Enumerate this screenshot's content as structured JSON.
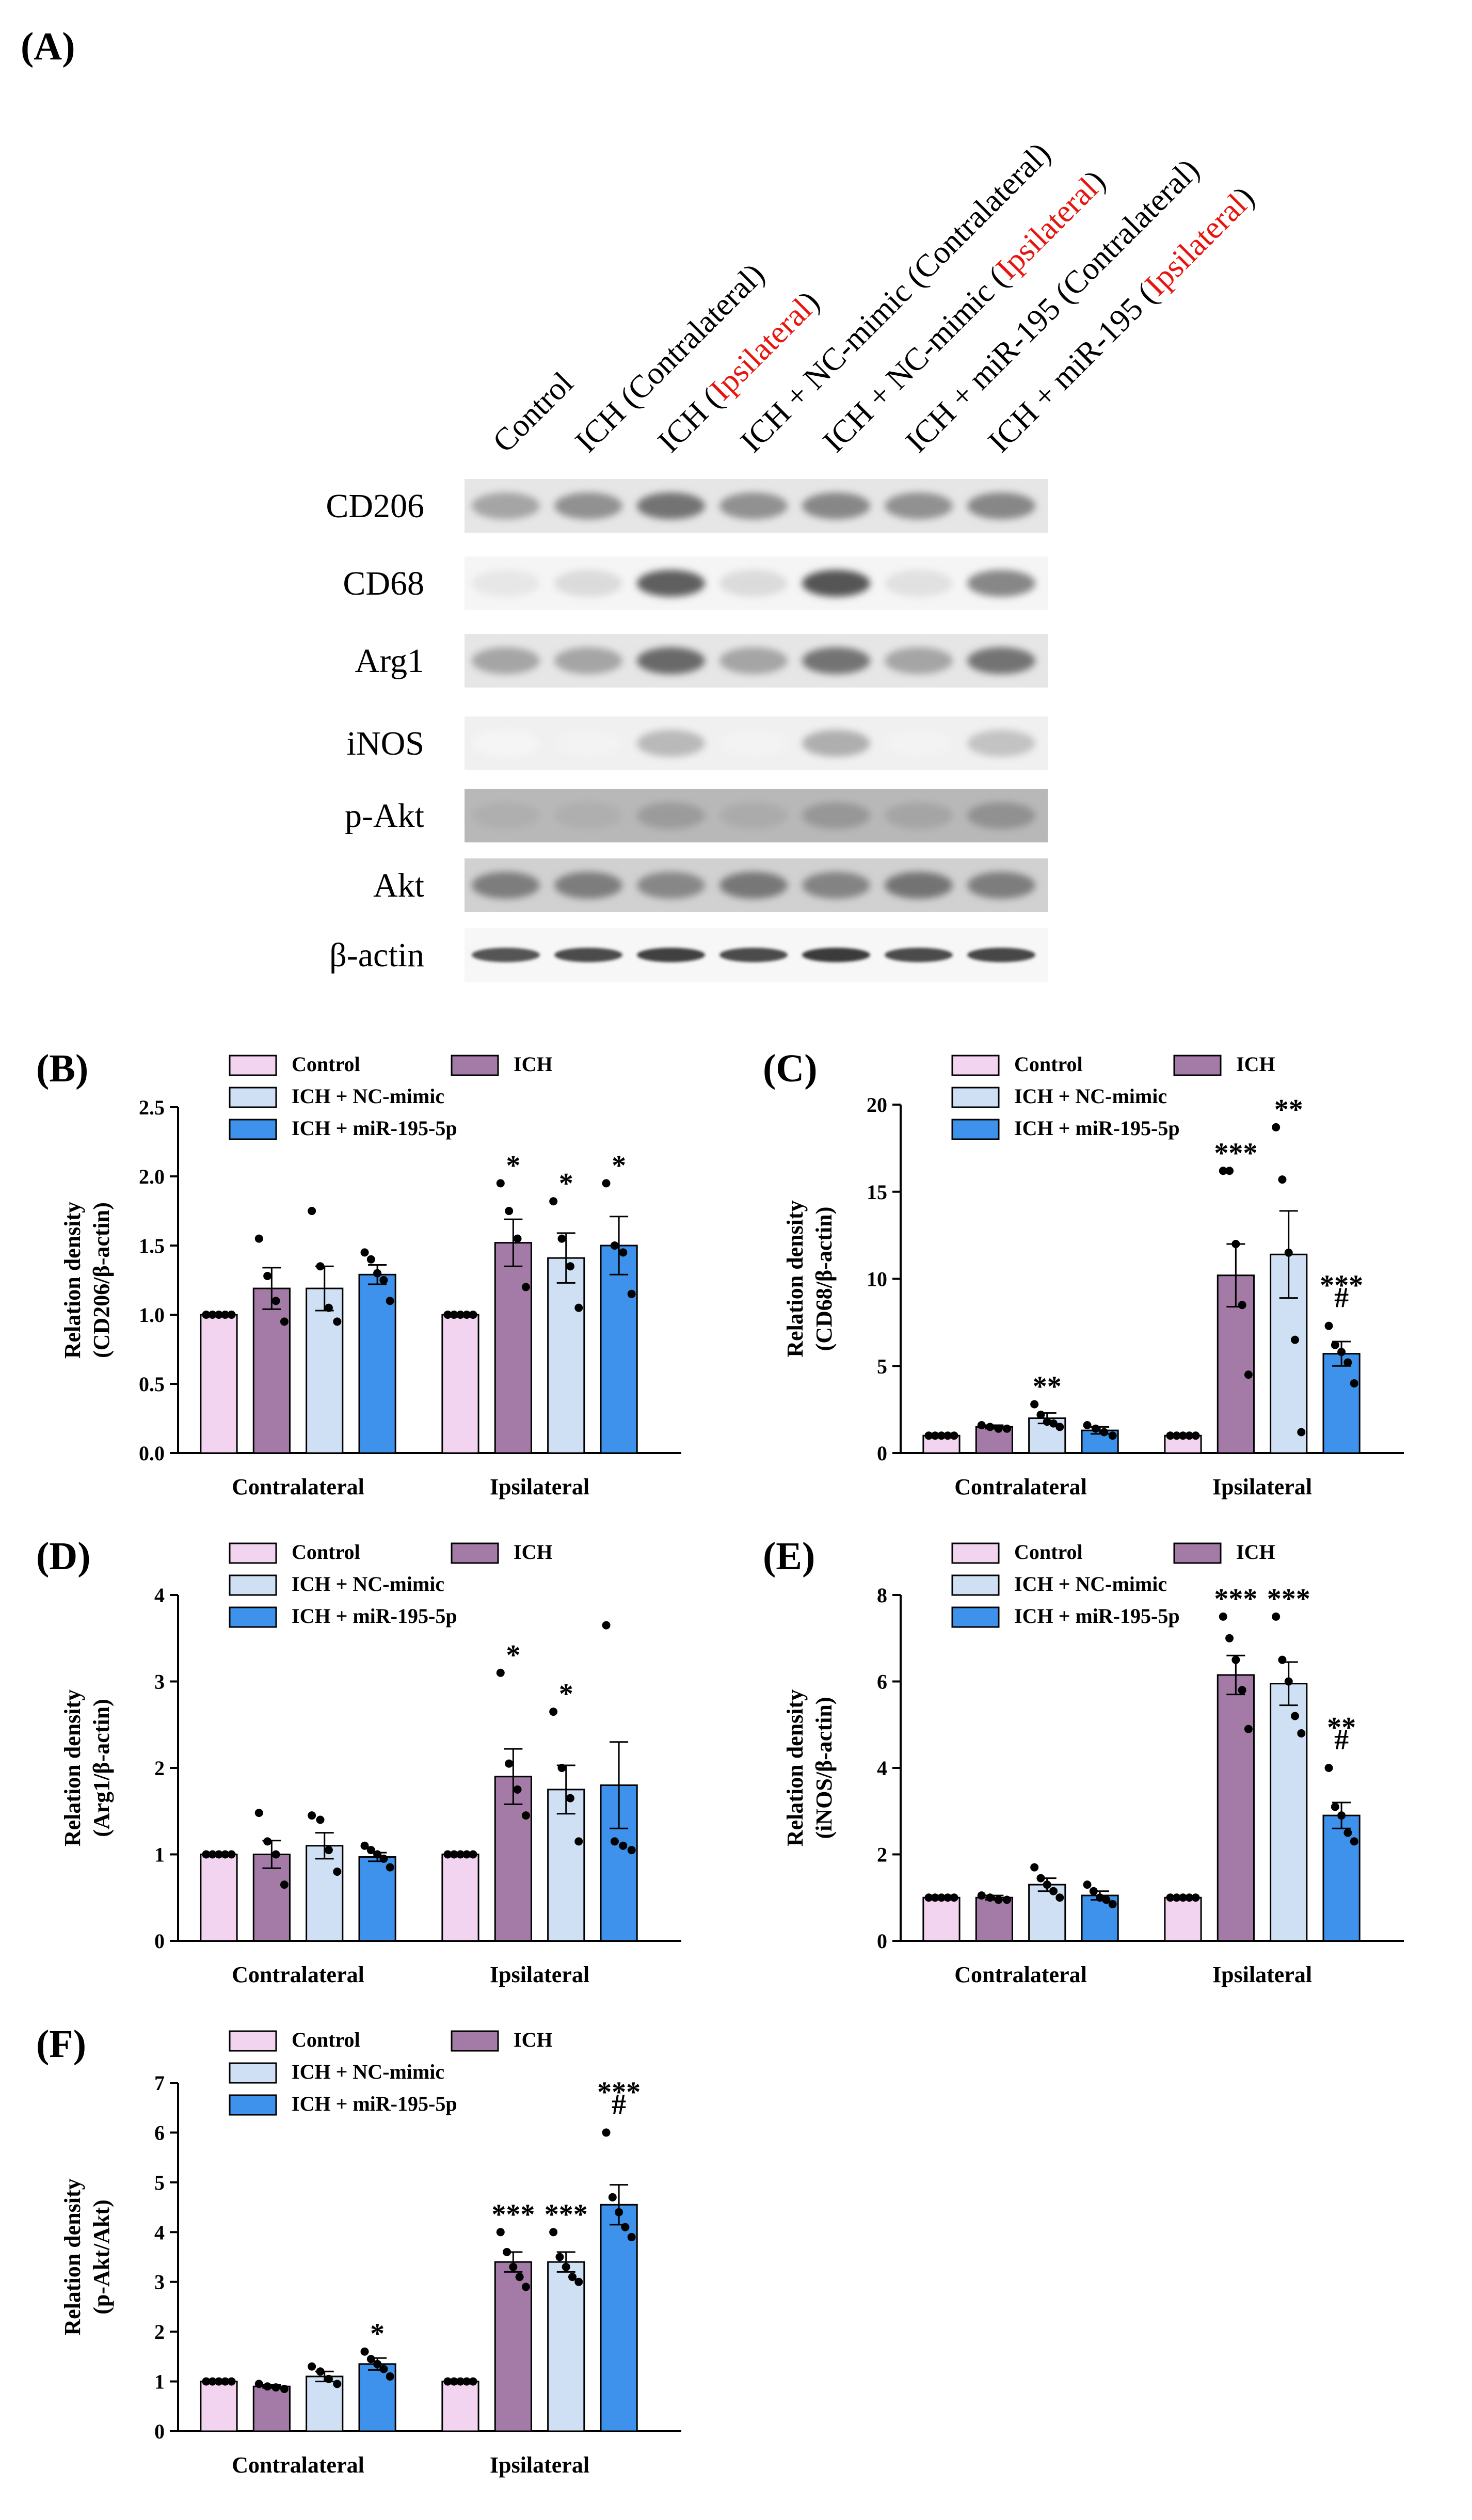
{
  "blot": {
    "panel_label": "(A)",
    "lanes": [
      {
        "prefix": "Control",
        "highlight": "",
        "suffix": ""
      },
      {
        "prefix": "ICH (Contralateral)",
        "highlight": "",
        "suffix": ""
      },
      {
        "prefix": "ICH (",
        "highlight": "Ipsilateral",
        "suffix": ")"
      },
      {
        "prefix": "ICH + NC-mimic (Contralateral)",
        "highlight": "",
        "suffix": ""
      },
      {
        "prefix": "ICH + NC-mimic (",
        "highlight": "Ipsilateral",
        "suffix": ")"
      },
      {
        "prefix": "ICH + miR-195 (Contralateral)",
        "highlight": "",
        "suffix": ""
      },
      {
        "prefix": "ICH + miR-195 (",
        "highlight": "Ipsilateral",
        "suffix": ")"
      }
    ],
    "bands": [
      {
        "label": "CD206",
        "intensity": [
          0.45,
          0.55,
          0.7,
          0.55,
          0.6,
          0.55,
          0.6
        ],
        "bg": 0.1
      },
      {
        "label": "CD68",
        "intensity": [
          0.12,
          0.18,
          0.8,
          0.18,
          0.85,
          0.15,
          0.6
        ],
        "bg": 0.04
      },
      {
        "label": "Arg1",
        "intensity": [
          0.45,
          0.45,
          0.75,
          0.45,
          0.7,
          0.45,
          0.7
        ],
        "bg": 0.1
      },
      {
        "label": "iNOS",
        "intensity": [
          0.05,
          0.06,
          0.35,
          0.06,
          0.4,
          0.06,
          0.3
        ],
        "bg": 0.06
      },
      {
        "label": "p-Akt",
        "intensity": [
          0.4,
          0.4,
          0.5,
          0.42,
          0.52,
          0.45,
          0.55
        ],
        "bg": 0.28
      },
      {
        "label": "Akt",
        "intensity": [
          0.65,
          0.65,
          0.6,
          0.68,
          0.62,
          0.7,
          0.65
        ],
        "bg": 0.18
      },
      {
        "label": "β-actin",
        "intensity": [
          0.85,
          0.9,
          0.95,
          0.9,
          0.98,
          0.9,
          0.92
        ],
        "bg": 0.03
      }
    ]
  },
  "colors": {
    "control": "#f2d4f1",
    "ich": "#a47aa7",
    "nc_mimic": "#cfe0f5",
    "mir195": "#3e92ec",
    "accent_red": "#e8140e"
  },
  "chart_data": [
    {
      "panel": "(B)",
      "type": "bar",
      "ylabel_line1": "Relation density",
      "ylabel_line2": "(CD206/β-actin)",
      "ylim": [
        0,
        2.5
      ],
      "yticks": [
        "0.0",
        "0.5",
        "1.0",
        "1.5",
        "2.0",
        "2.5"
      ],
      "ytick_values": [
        0,
        0.5,
        1.0,
        1.5,
        2.0,
        2.5
      ],
      "categories": [
        "Contralateral",
        "Ipsilateral"
      ],
      "legend": [
        "Control",
        "ICH",
        "ICH + NC-mimic",
        "ICH + miR-195-5p"
      ],
      "series": [
        {
          "name": "Control",
          "values": [
            1.0,
            1.0
          ],
          "sem": [
            0,
            0
          ],
          "points": [
            [
              1,
              1,
              1,
              1,
              1
            ],
            [
              1,
              1,
              1,
              1,
              1
            ]
          ],
          "sig": [
            "",
            ""
          ]
        },
        {
          "name": "ICH",
          "values": [
            1.19,
            1.52
          ],
          "sem": [
            0.15,
            0.17
          ],
          "points": [
            [
              1.55,
              1.28,
              1.1,
              0.95
            ],
            [
              1.95,
              1.75,
              1.55,
              1.2
            ]
          ],
          "sig": [
            "",
            "*"
          ]
        },
        {
          "name": "ICH + NC-mimic",
          "values": [
            1.19,
            1.41
          ],
          "sem": [
            0.16,
            0.18
          ],
          "points": [
            [
              1.75,
              1.35,
              1.05,
              0.95
            ],
            [
              1.82,
              1.55,
              1.35,
              1.05
            ]
          ],
          "sig": [
            "",
            "*"
          ]
        },
        {
          "name": "ICH + miR-195-5p",
          "values": [
            1.29,
            1.5
          ],
          "sem": [
            0.07,
            0.21
          ],
          "points": [
            [
              1.45,
              1.4,
              1.3,
              1.25,
              1.1
            ],
            [
              1.95,
              1.5,
              1.45,
              1.15
            ]
          ],
          "sig": [
            "",
            "*"
          ]
        }
      ]
    },
    {
      "panel": "(C)",
      "type": "bar",
      "ylabel_line1": "Relation density",
      "ylabel_line2": "(CD68/β-actin)",
      "ylim": [
        0,
        20
      ],
      "yticks": [
        "0",
        "5",
        "10",
        "15",
        "20"
      ],
      "ytick_values": [
        0,
        5,
        10,
        15,
        20
      ],
      "categories": [
        "Contralateral",
        "Ipsilateral"
      ],
      "legend": [
        "Control",
        "ICH",
        "ICH + NC-mimic",
        "ICH + miR-195-5p"
      ],
      "series": [
        {
          "name": "Control",
          "values": [
            1.0,
            1.0
          ],
          "sem": [
            0,
            0
          ],
          "points": [
            [
              1,
              1,
              1,
              1,
              1
            ],
            [
              1,
              1,
              1,
              1,
              1
            ]
          ],
          "sig": [
            "",
            ""
          ]
        },
        {
          "name": "ICH",
          "values": [
            1.5,
            10.2
          ],
          "sem": [
            0.1,
            1.8
          ],
          "points": [
            [
              1.6,
              1.5,
              1.4,
              1.4
            ],
            [
              16.2,
              16.2,
              12.0,
              8.5,
              4.5
            ]
          ],
          "sig": [
            "",
            "***"
          ]
        },
        {
          "name": "ICH + NC-mimic",
          "values": [
            2.0,
            11.4
          ],
          "sem": [
            0.3,
            2.5
          ],
          "points": [
            [
              2.8,
              2.2,
              1.8,
              1.7,
              1.5
            ],
            [
              18.7,
              15.7,
              11.5,
              6.5,
              1.2
            ]
          ],
          "sig": [
            "**",
            "**"
          ]
        },
        {
          "name": "ICH + miR-195-5p",
          "values": [
            1.3,
            5.7
          ],
          "sem": [
            0.2,
            0.7
          ],
          "points": [
            [
              1.6,
              1.4,
              1.2,
              1.0
            ],
            [
              7.3,
              6.2,
              5.8,
              5.2,
              4.0
            ]
          ],
          "sig": [
            "",
            "***\n#"
          ]
        }
      ]
    },
    {
      "panel": "(D)",
      "type": "bar",
      "ylabel_line1": "Relation density",
      "ylabel_line2": "(Arg1/β-actin)",
      "ylim": [
        0,
        4
      ],
      "yticks": [
        "0",
        "1",
        "2",
        "3",
        "4"
      ],
      "ytick_values": [
        0,
        1,
        2,
        3,
        4
      ],
      "categories": [
        "Contralateral",
        "Ipsilateral"
      ],
      "legend": [
        "Control",
        "ICH",
        "ICH + NC-mimic",
        "ICH + miR-195-5p"
      ],
      "series": [
        {
          "name": "Control",
          "values": [
            1.0,
            1.0
          ],
          "sem": [
            0,
            0
          ],
          "points": [
            [
              1,
              1,
              1,
              1,
              1
            ],
            [
              1,
              1,
              1,
              1,
              1
            ]
          ],
          "sig": [
            "",
            ""
          ]
        },
        {
          "name": "ICH",
          "values": [
            1.0,
            1.9
          ],
          "sem": [
            0.16,
            0.32
          ],
          "points": [
            [
              1.48,
              1.15,
              1.0,
              0.65
            ],
            [
              3.1,
              2.05,
              1.75,
              1.45
            ]
          ],
          "sig": [
            "",
            "*"
          ]
        },
        {
          "name": "ICH + NC-mimic",
          "values": [
            1.1,
            1.75
          ],
          "sem": [
            0.15,
            0.28
          ],
          "points": [
            [
              1.45,
              1.4,
              1.05,
              0.8
            ],
            [
              2.65,
              2.0,
              1.65,
              1.15
            ]
          ],
          "sig": [
            "",
            "*"
          ]
        },
        {
          "name": "ICH + miR-195-5p",
          "values": [
            0.97,
            1.8
          ],
          "sem": [
            0.05,
            0.5
          ],
          "points": [
            [
              1.1,
              1.05,
              1.0,
              0.95,
              0.85
            ],
            [
              3.65,
              1.15,
              1.1,
              1.05
            ]
          ],
          "sig": [
            "",
            ""
          ]
        }
      ]
    },
    {
      "panel": "(E)",
      "type": "bar",
      "ylabel_line1": "Relation density",
      "ylabel_line2": "(iNOS/β-actin)",
      "ylim": [
        0,
        8
      ],
      "yticks": [
        "0",
        "2",
        "4",
        "6",
        "8"
      ],
      "ytick_values": [
        0,
        2,
        4,
        6,
        8
      ],
      "categories": [
        "Contralateral",
        "Ipsilateral"
      ],
      "legend": [
        "Control",
        "ICH",
        "ICH + NC-mimic",
        "ICH + miR-195-5p"
      ],
      "series": [
        {
          "name": "Control",
          "values": [
            1.0,
            1.0
          ],
          "sem": [
            0,
            0
          ],
          "points": [
            [
              1,
              1,
              1,
              1,
              1
            ],
            [
              1,
              1,
              1,
              1,
              1
            ]
          ],
          "sig": [
            "",
            ""
          ]
        },
        {
          "name": "ICH",
          "values": [
            1.0,
            6.15
          ],
          "sem": [
            0.05,
            0.45
          ],
          "points": [
            [
              1.05,
              1.0,
              0.95,
              0.95
            ],
            [
              7.5,
              7.0,
              6.5,
              5.8,
              4.9
            ]
          ],
          "sig": [
            "",
            "***"
          ]
        },
        {
          "name": "ICH + NC-mimic",
          "values": [
            1.3,
            5.95
          ],
          "sem": [
            0.15,
            0.5
          ],
          "points": [
            [
              1.7,
              1.45,
              1.3,
              1.15,
              1.0
            ],
            [
              7.5,
              6.5,
              6.0,
              5.2,
              4.8
            ]
          ],
          "sig": [
            "",
            "***"
          ]
        },
        {
          "name": "ICH + miR-195-5p",
          "values": [
            1.05,
            2.9
          ],
          "sem": [
            0.1,
            0.3
          ],
          "points": [
            [
              1.3,
              1.15,
              1.0,
              0.95,
              0.85
            ],
            [
              4.0,
              3.1,
              2.9,
              2.5,
              2.3
            ]
          ],
          "sig": [
            "",
            "**\n#"
          ]
        }
      ]
    },
    {
      "panel": "(F)",
      "type": "bar",
      "ylabel_line1": "Relation density",
      "ylabel_line2": "(p-Akt/Akt)",
      "ylim": [
        0,
        7
      ],
      "yticks": [
        "0",
        "1",
        "2",
        "3",
        "4",
        "5",
        "6",
        "7"
      ],
      "ytick_values": [
        0,
        1,
        2,
        3,
        4,
        5,
        6,
        7
      ],
      "categories": [
        "Contralateral",
        "Ipsilateral"
      ],
      "legend": [
        "Control",
        "ICH",
        "ICH + NC-mimic",
        "ICH + miR-195-5p"
      ],
      "series": [
        {
          "name": "Control",
          "values": [
            1.0,
            1.0
          ],
          "sem": [
            0,
            0
          ],
          "points": [
            [
              1,
              1,
              1,
              1,
              1
            ],
            [
              1,
              1,
              1,
              1,
              1
            ]
          ],
          "sig": [
            "",
            ""
          ]
        },
        {
          "name": "ICH",
          "values": [
            0.9,
            3.4
          ],
          "sem": [
            0.03,
            0.2
          ],
          "points": [
            [
              0.95,
              0.9,
              0.88,
              0.85
            ],
            [
              4.0,
              3.6,
              3.3,
              3.1,
              2.9
            ]
          ],
          "sig": [
            "",
            "***"
          ]
        },
        {
          "name": "ICH + NC-mimic",
          "values": [
            1.1,
            3.4
          ],
          "sem": [
            0.1,
            0.2
          ],
          "points": [
            [
              1.3,
              1.2,
              1.05,
              0.95
            ],
            [
              4.0,
              3.5,
              3.3,
              3.1,
              3.0
            ]
          ],
          "sig": [
            "",
            "***"
          ]
        },
        {
          "name": "ICH + miR-195-5p",
          "values": [
            1.35,
            4.55
          ],
          "sem": [
            0.12,
            0.4
          ],
          "points": [
            [
              1.6,
              1.45,
              1.35,
              1.25,
              1.1
            ],
            [
              6.0,
              4.7,
              4.4,
              4.1,
              3.9
            ]
          ],
          "sig": [
            "*",
            "***\n#"
          ]
        }
      ]
    }
  ]
}
